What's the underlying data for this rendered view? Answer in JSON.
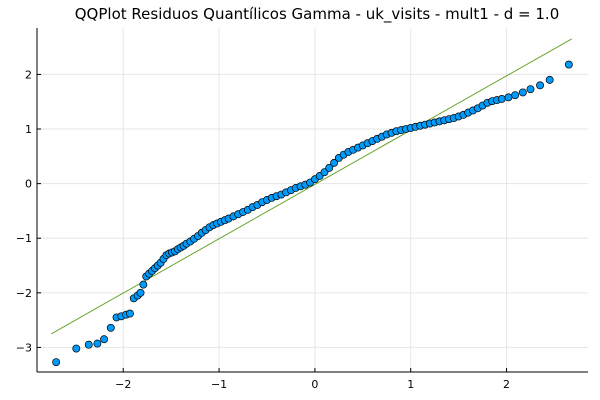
{
  "chart_data": {
    "type": "scatter",
    "title": "QQPlot Residuos Quantílicos Gamma - uk_visits - mult1 - d = 1.0",
    "xlabel": "",
    "ylabel": "",
    "xlim": [
      -2.9,
      2.85
    ],
    "ylim": [
      -3.45,
      2.85
    ],
    "xticks": [
      -2,
      -1,
      0,
      1,
      2
    ],
    "yticks": [
      -3,
      -2,
      -1,
      0,
      1,
      2
    ],
    "xtick_labels": [
      "−2",
      "−1",
      "0",
      "1",
      "2"
    ],
    "ytick_labels": [
      "−3",
      "−2",
      "−1",
      "0",
      "1",
      "2"
    ],
    "grid": true,
    "legend": "none",
    "colors": {
      "points": "#009af9",
      "point_edge": "#000000",
      "reference_line": "#6aa32c"
    },
    "series": [
      {
        "type": "scatter",
        "x": [
          -2.7,
          -2.49,
          -2.36,
          -2.27,
          -2.2,
          -2.13,
          -2.07,
          -2.02,
          -1.97,
          -1.93,
          -1.89,
          -1.85,
          -1.82,
          -1.79,
          -1.76,
          -1.73,
          -1.7,
          -1.67,
          -1.64,
          -1.61,
          -1.58,
          -1.55,
          -1.52,
          -1.49,
          -1.46,
          -1.43,
          -1.4,
          -1.37,
          -1.34,
          -1.3,
          -1.26,
          -1.22,
          -1.18,
          -1.14,
          -1.1,
          -1.06,
          -1.02,
          -0.98,
          -0.94,
          -0.9,
          -0.85,
          -0.8,
          -0.75,
          -0.7,
          -0.65,
          -0.6,
          -0.55,
          -0.5,
          -0.45,
          -0.4,
          -0.35,
          -0.3,
          -0.25,
          -0.2,
          -0.15,
          -0.1,
          -0.05,
          0.0,
          0.05,
          0.1,
          0.15,
          0.2,
          0.25,
          0.3,
          0.35,
          0.4,
          0.45,
          0.5,
          0.55,
          0.6,
          0.65,
          0.7,
          0.75,
          0.8,
          0.85,
          0.9,
          0.95,
          1.0,
          1.05,
          1.1,
          1.15,
          1.2,
          1.25,
          1.3,
          1.35,
          1.4,
          1.45,
          1.5,
          1.55,
          1.6,
          1.65,
          1.7,
          1.75,
          1.8,
          1.85,
          1.9,
          1.95,
          2.02,
          2.09,
          2.17,
          2.25,
          2.35,
          2.45,
          2.65
        ],
        "y": [
          -3.27,
          -3.02,
          -2.95,
          -2.93,
          -2.85,
          -2.64,
          -2.45,
          -2.43,
          -2.4,
          -2.38,
          -2.1,
          -2.05,
          -2.0,
          -1.85,
          -1.7,
          -1.65,
          -1.6,
          -1.55,
          -1.5,
          -1.45,
          -1.38,
          -1.31,
          -1.28,
          -1.26,
          -1.24,
          -1.2,
          -1.17,
          -1.14,
          -1.1,
          -1.06,
          -1.01,
          -0.96,
          -0.9,
          -0.85,
          -0.8,
          -0.76,
          -0.73,
          -0.7,
          -0.67,
          -0.64,
          -0.6,
          -0.56,
          -0.52,
          -0.48,
          -0.43,
          -0.39,
          -0.34,
          -0.3,
          -0.26,
          -0.23,
          -0.2,
          -0.16,
          -0.12,
          -0.08,
          -0.05,
          -0.02,
          0.02,
          0.08,
          0.14,
          0.21,
          0.29,
          0.38,
          0.47,
          0.53,
          0.58,
          0.62,
          0.66,
          0.7,
          0.74,
          0.78,
          0.82,
          0.86,
          0.9,
          0.93,
          0.96,
          0.98,
          1.0,
          1.02,
          1.04,
          1.06,
          1.08,
          1.1,
          1.12,
          1.14,
          1.16,
          1.18,
          1.2,
          1.23,
          1.26,
          1.3,
          1.34,
          1.38,
          1.43,
          1.48,
          1.51,
          1.53,
          1.55,
          1.58,
          1.62,
          1.67,
          1.73,
          1.8,
          1.9,
          2.18
        ]
      },
      {
        "type": "line",
        "x": [
          -2.75,
          2.68
        ],
        "y": [
          -2.75,
          2.65
        ]
      }
    ]
  }
}
